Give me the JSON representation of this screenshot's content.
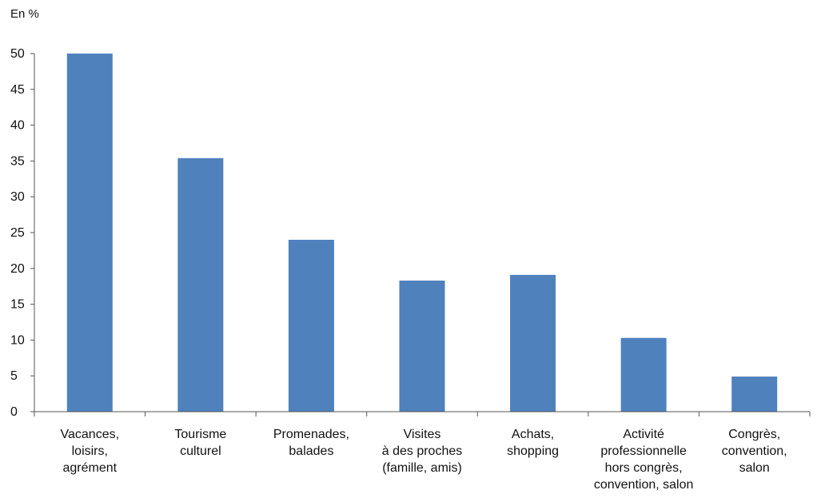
{
  "chart_data": {
    "type": "bar",
    "ylabel": "En %",
    "ylim": [
      0,
      50
    ],
    "yticks": [
      0,
      5,
      10,
      15,
      20,
      25,
      30,
      35,
      40,
      45,
      50
    ],
    "grid": false,
    "legend": "none",
    "bar_color": "#4F81BD",
    "categories": [
      [
        "Vacances,",
        "loisirs,",
        "agrément"
      ],
      [
        "Tourisme",
        "culturel"
      ],
      [
        "Promenades,",
        "balades"
      ],
      [
        "Visites",
        "à des proches",
        "(famille, amis)"
      ],
      [
        "Achats,",
        "shopping"
      ],
      [
        "Activité",
        "professionnelle",
        "hors congrès,",
        "convention, salon"
      ],
      [
        "Congrès,",
        "convention,",
        "salon"
      ]
    ],
    "values": [
      50,
      35.4,
      24,
      18.3,
      19.1,
      10.3,
      4.9
    ]
  }
}
